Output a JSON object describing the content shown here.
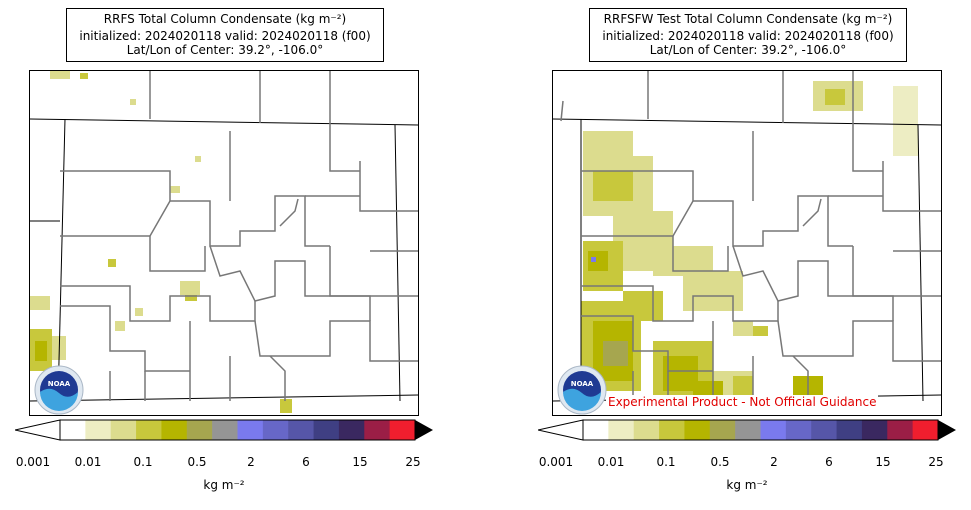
{
  "panels": [
    {
      "title_line1": "RRFS Total Column Condensate (kg m⁻²)",
      "title_line2": "initialized: 2024020118 valid: 2024020118 (f00)",
      "title_line3": "Lat/Lon of Center: 39.2°, -106.0°"
    },
    {
      "title_line1": "RRFSFW Test Total Column Condensate (kg m⁻²)",
      "title_line2": "initialized: 2024020118 valid: 2024020118 (f00)",
      "title_line3": "Lat/Lon of Center: 39.2°, -106.0°"
    }
  ],
  "colorbar": {
    "tick_labels": [
      "0.001",
      "0.01",
      "0.1",
      "0.5",
      "2",
      "6",
      "15",
      "25"
    ],
    "unit_label": "kg m⁻²",
    "colors": [
      "#ffffff",
      "#ededc3",
      "#dcdc8e",
      "#c8c83c",
      "#b5b500",
      "#a6a64f",
      "#959595",
      "#7a7aee",
      "#6767c8",
      "#5656a8",
      "#3f3f83",
      "#3a2860",
      "#9b1e46",
      "#f01e2e"
    ]
  },
  "logo": {
    "text": "NOAA"
  },
  "disclaimer": "Experimental Product - Not Official Guidance"
}
